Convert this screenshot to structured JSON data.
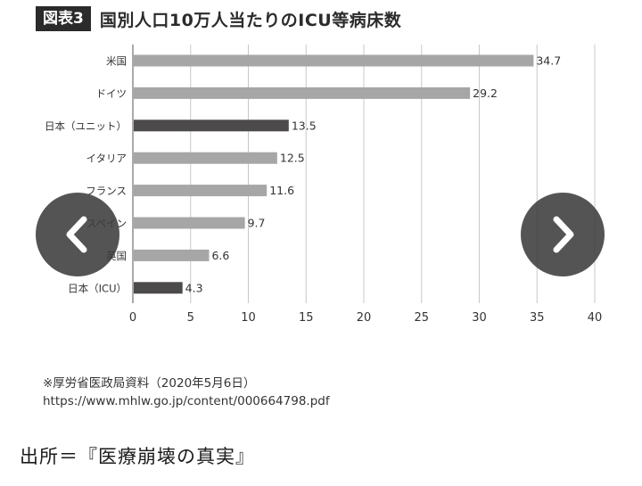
{
  "figure": {
    "badge": "図表3",
    "title": "国別人口10万人当たりのICU等病床数"
  },
  "chart_data": {
    "type": "bar",
    "orientation": "horizontal",
    "categories": [
      "米国",
      "ドイツ",
      "日本（ユニット）",
      "イタリア",
      "フランス",
      "スペイン",
      "英国",
      "日本（ICU）"
    ],
    "values": [
      34.7,
      29.2,
      13.5,
      12.5,
      11.6,
      9.7,
      6.6,
      4.3
    ],
    "value_labels": [
      "34.7",
      "29.2",
      "13.5",
      "12.5",
      "11.6",
      "9.7",
      "6.6",
      "4.3"
    ],
    "highlight_categories": [
      "日本（ユニット）",
      "日本（ICU）"
    ],
    "xlim": [
      0,
      40
    ],
    "xticks": [
      "0",
      "5",
      "10",
      "15",
      "20",
      "25",
      "30",
      "35",
      "40"
    ],
    "grid": "vertical",
    "title": "",
    "xlabel": "",
    "ylabel": "",
    "colors": {
      "bar": "#a6a6a6",
      "highlight": "#4d4a4b",
      "grid": "#c8c8c8"
    }
  },
  "source": {
    "note": "※厚労省医政局資料（2020年5月6日）",
    "url": "https://www.mhlw.go.jp/content/000664798.pdf"
  },
  "credit": "出所＝『医療崩壊の真実』",
  "nav": {
    "prev_icon": "chevron-left-icon",
    "next_icon": "chevron-right-icon"
  }
}
